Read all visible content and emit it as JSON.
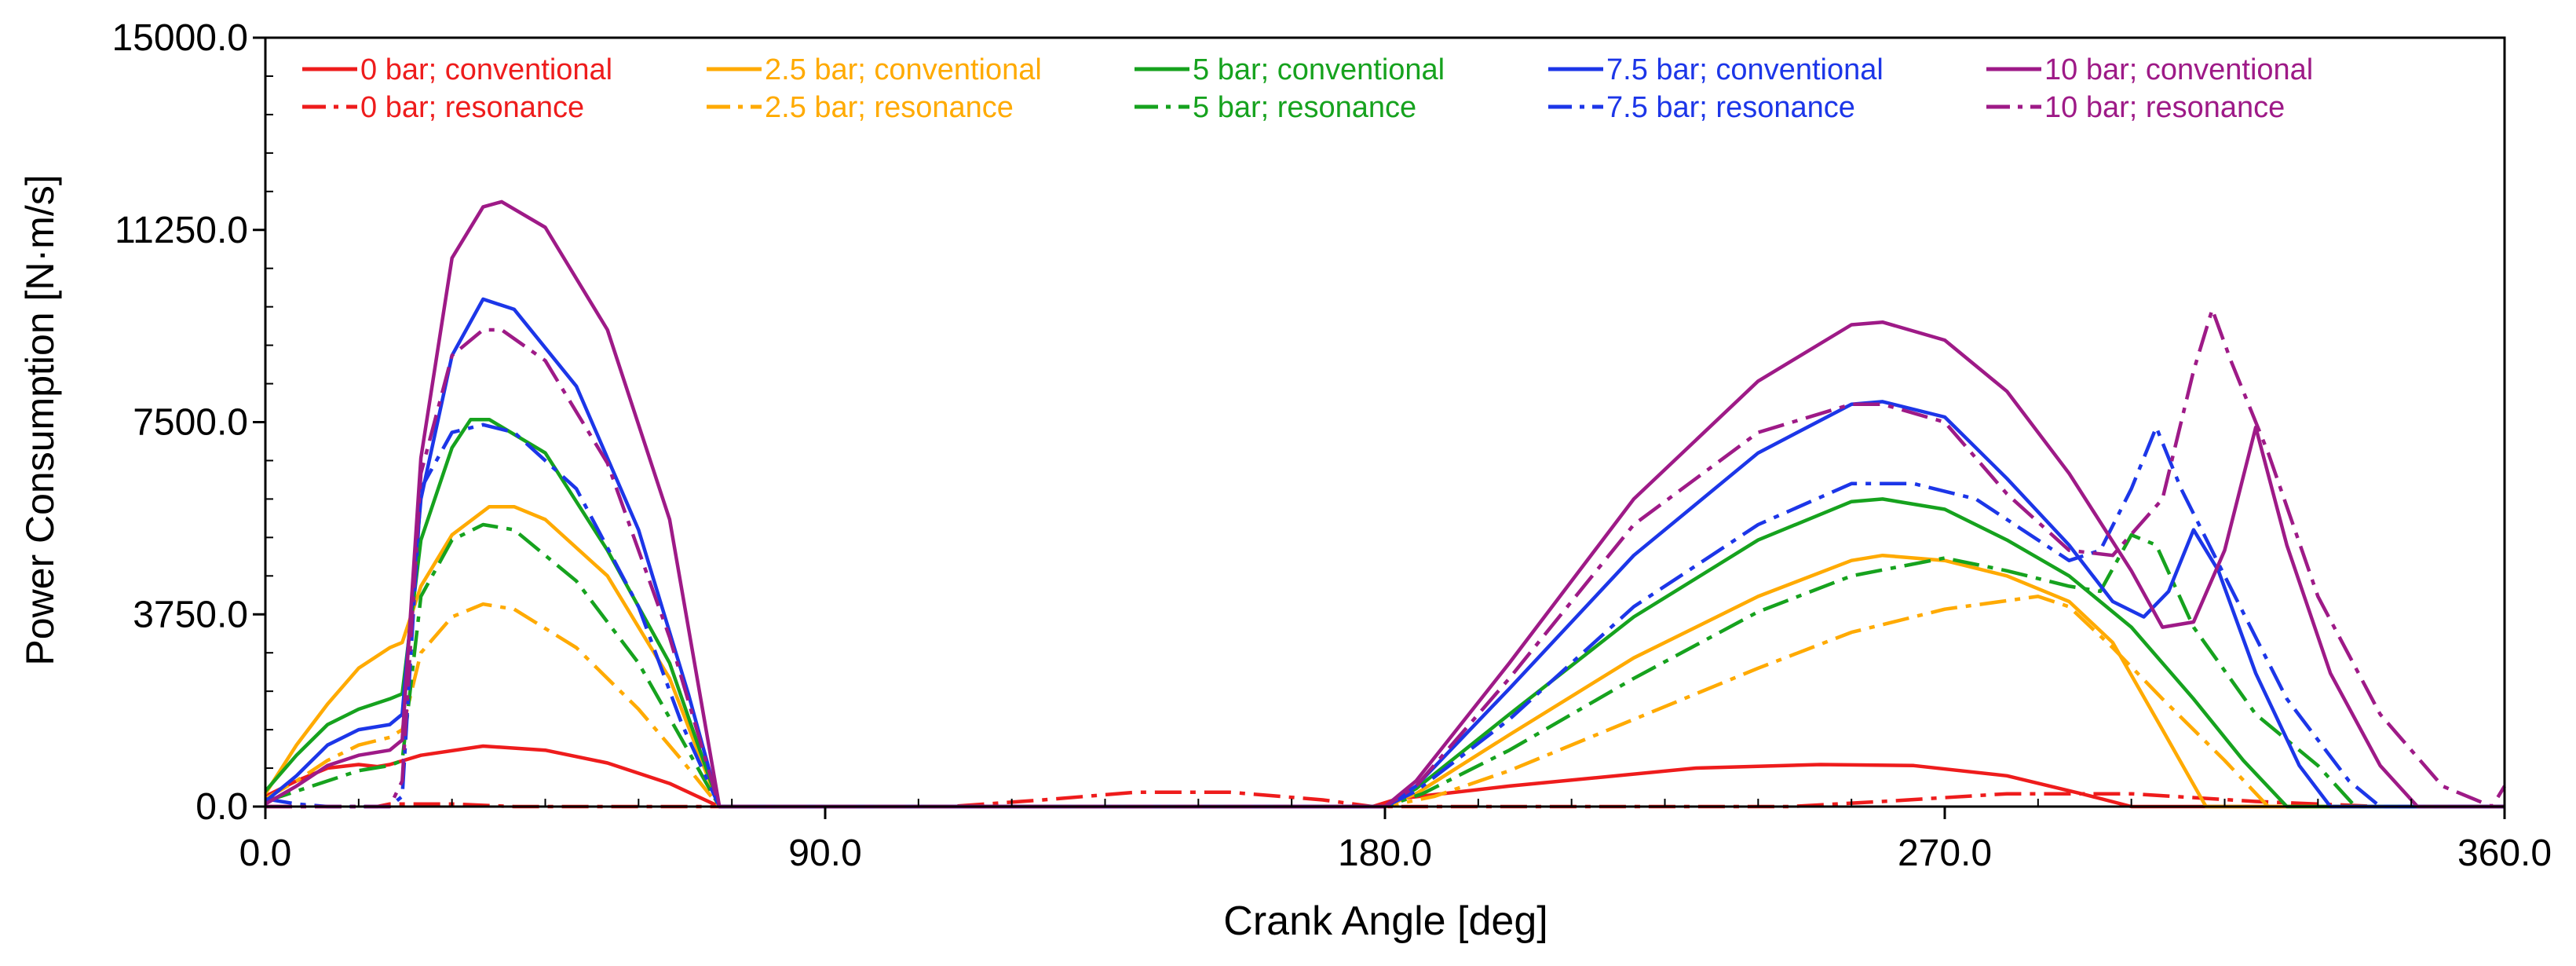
{
  "chart_data": {
    "type": "line",
    "title": "",
    "xlabel": "Crank Angle [deg]",
    "ylabel": "Power Consumption [N·m/s]",
    "xlim": [
      0,
      360
    ],
    "ylim": [
      0,
      15000
    ],
    "xticks": [
      0,
      90,
      180,
      270,
      360
    ],
    "yticks": [
      0,
      3750,
      7500,
      11250,
      15000
    ],
    "xtick_labels": [
      "0.0",
      "90.0",
      "180.0",
      "270.0",
      "360.0"
    ],
    "ytick_labels": [
      "0.0",
      "3750.0",
      "7500.0",
      "11250.0",
      "15000.0"
    ],
    "grid": false,
    "legend_position": "top",
    "series": [
      {
        "name": "0 bar; conventional",
        "color": "#ee1c1c",
        "style": "solid",
        "points": [
          [
            0,
            200
          ],
          [
            5,
            500
          ],
          [
            10,
            750
          ],
          [
            15,
            820
          ],
          [
            18,
            780
          ],
          [
            20,
            820
          ],
          [
            25,
            1000
          ],
          [
            35,
            1180
          ],
          [
            45,
            1100
          ],
          [
            55,
            850
          ],
          [
            65,
            450
          ],
          [
            73,
            0
          ],
          [
            178,
            0
          ],
          [
            182,
            150
          ],
          [
            200,
            400
          ],
          [
            230,
            750
          ],
          [
            250,
            820
          ],
          [
            265,
            800
          ],
          [
            280,
            600
          ],
          [
            292,
            250
          ],
          [
            300,
            0
          ],
          [
            360,
            0
          ]
        ]
      },
      {
        "name": "0 bar; resonance",
        "color": "#ee1c1c",
        "style": "dashdot",
        "points": [
          [
            0,
            0
          ],
          [
            18,
            0
          ],
          [
            20,
            50
          ],
          [
            30,
            50
          ],
          [
            40,
            0
          ],
          [
            110,
            0
          ],
          [
            125,
            130
          ],
          [
            140,
            280
          ],
          [
            155,
            280
          ],
          [
            170,
            130
          ],
          [
            178,
            0
          ],
          [
            245,
            0
          ],
          [
            260,
            100
          ],
          [
            280,
            250
          ],
          [
            300,
            250
          ],
          [
            320,
            100
          ],
          [
            340,
            0
          ],
          [
            360,
            0
          ]
        ]
      },
      {
        "name": "2.5 bar; conventional",
        "color": "#ffaa00",
        "style": "solid",
        "points": [
          [
            0,
            250
          ],
          [
            5,
            1200
          ],
          [
            10,
            2000
          ],
          [
            15,
            2700
          ],
          [
            20,
            3100
          ],
          [
            22,
            3200
          ],
          [
            25,
            4300
          ],
          [
            30,
            5300
          ],
          [
            36,
            5850
          ],
          [
            40,
            5850
          ],
          [
            45,
            5600
          ],
          [
            55,
            4500
          ],
          [
            65,
            2500
          ],
          [
            73,
            0
          ],
          [
            180,
            0
          ],
          [
            185,
            250
          ],
          [
            200,
            1400
          ],
          [
            220,
            2900
          ],
          [
            240,
            4100
          ],
          [
            255,
            4800
          ],
          [
            260,
            4900
          ],
          [
            270,
            4800
          ],
          [
            280,
            4500
          ],
          [
            290,
            4000
          ],
          [
            297,
            3200
          ],
          [
            305,
            1500
          ],
          [
            312,
            0
          ],
          [
            360,
            0
          ]
        ]
      },
      {
        "name": "2.5 bar; resonance",
        "color": "#ffaa00",
        "style": "dashdot",
        "points": [
          [
            0,
            150
          ],
          [
            5,
            500
          ],
          [
            10,
            900
          ],
          [
            15,
            1200
          ],
          [
            20,
            1350
          ],
          [
            22,
            1500
          ],
          [
            25,
            3000
          ],
          [
            30,
            3700
          ],
          [
            35,
            3950
          ],
          [
            40,
            3850
          ],
          [
            50,
            3100
          ],
          [
            60,
            1900
          ],
          [
            67,
            900
          ],
          [
            73,
            0
          ],
          [
            180,
            0
          ],
          [
            188,
            200
          ],
          [
            200,
            700
          ],
          [
            220,
            1700
          ],
          [
            240,
            2700
          ],
          [
            255,
            3400
          ],
          [
            270,
            3850
          ],
          [
            285,
            4100
          ],
          [
            290,
            3900
          ],
          [
            297,
            3100
          ],
          [
            305,
            2100
          ],
          [
            315,
            900
          ],
          [
            322,
            0
          ],
          [
            360,
            0
          ]
        ]
      },
      {
        "name": "5 bar; conventional",
        "color": "#16a21e",
        "style": "solid",
        "points": [
          [
            0,
            300
          ],
          [
            5,
            1000
          ],
          [
            10,
            1600
          ],
          [
            15,
            1900
          ],
          [
            20,
            2100
          ],
          [
            22,
            2200
          ],
          [
            25,
            5200
          ],
          [
            30,
            7000
          ],
          [
            33,
            7550
          ],
          [
            36,
            7550
          ],
          [
            45,
            6900
          ],
          [
            55,
            5000
          ],
          [
            65,
            2800
          ],
          [
            73,
            0
          ],
          [
            180,
            0
          ],
          [
            185,
            350
          ],
          [
            200,
            1800
          ],
          [
            220,
            3700
          ],
          [
            240,
            5200
          ],
          [
            255,
            5950
          ],
          [
            260,
            6000
          ],
          [
            270,
            5800
          ],
          [
            280,
            5200
          ],
          [
            290,
            4500
          ],
          [
            300,
            3500
          ],
          [
            310,
            2100
          ],
          [
            318,
            900
          ],
          [
            325,
            0
          ],
          [
            360,
            0
          ]
        ]
      },
      {
        "name": "5 bar; resonance",
        "color": "#16a21e",
        "style": "dashdot",
        "points": [
          [
            0,
            100
          ],
          [
            5,
            300
          ],
          [
            10,
            500
          ],
          [
            15,
            700
          ],
          [
            20,
            800
          ],
          [
            22,
            900
          ],
          [
            25,
            4100
          ],
          [
            30,
            5200
          ],
          [
            35,
            5500
          ],
          [
            40,
            5400
          ],
          [
            50,
            4400
          ],
          [
            60,
            2800
          ],
          [
            67,
            1300
          ],
          [
            73,
            0
          ],
          [
            180,
            0
          ],
          [
            186,
            250
          ],
          [
            200,
            1100
          ],
          [
            220,
            2500
          ],
          [
            240,
            3800
          ],
          [
            255,
            4500
          ],
          [
            270,
            4850
          ],
          [
            280,
            4600
          ],
          [
            290,
            4300
          ],
          [
            295,
            4200
          ],
          [
            300,
            5300
          ],
          [
            304,
            5100
          ],
          [
            310,
            3500
          ],
          [
            320,
            1800
          ],
          [
            330,
            800
          ],
          [
            336,
            0
          ],
          [
            360,
            0
          ]
        ]
      },
      {
        "name": "7.5 bar; conventional",
        "color": "#1c36e8",
        "style": "solid",
        "points": [
          [
            0,
            100
          ],
          [
            5,
            600
          ],
          [
            10,
            1200
          ],
          [
            15,
            1500
          ],
          [
            20,
            1600
          ],
          [
            22,
            1800
          ],
          [
            25,
            6000
          ],
          [
            30,
            8800
          ],
          [
            35,
            9900
          ],
          [
            40,
            9700
          ],
          [
            50,
            8200
          ],
          [
            60,
            5400
          ],
          [
            68,
            2200
          ],
          [
            73,
            0
          ],
          [
            180,
            0
          ],
          [
            185,
            400
          ],
          [
            200,
            2300
          ],
          [
            220,
            4900
          ],
          [
            240,
            6900
          ],
          [
            255,
            7850
          ],
          [
            260,
            7900
          ],
          [
            270,
            7600
          ],
          [
            280,
            6400
          ],
          [
            290,
            5100
          ],
          [
            297,
            4000
          ],
          [
            302,
            3700
          ],
          [
            306,
            4200
          ],
          [
            310,
            5400
          ],
          [
            314,
            4600
          ],
          [
            320,
            2600
          ],
          [
            327,
            800
          ],
          [
            332,
            0
          ],
          [
            360,
            0
          ]
        ]
      },
      {
        "name": "7.5 bar; resonance",
        "color": "#1c36e8",
        "style": "dashdot",
        "points": [
          [
            0,
            150
          ],
          [
            5,
            50
          ],
          [
            10,
            0
          ],
          [
            20,
            0
          ],
          [
            22,
            200
          ],
          [
            25,
            6200
          ],
          [
            30,
            7300
          ],
          [
            35,
            7450
          ],
          [
            40,
            7300
          ],
          [
            50,
            6200
          ],
          [
            60,
            3900
          ],
          [
            67,
            1600
          ],
          [
            73,
            0
          ],
          [
            180,
            0
          ],
          [
            185,
            300
          ],
          [
            200,
            1700
          ],
          [
            220,
            3900
          ],
          [
            240,
            5500
          ],
          [
            255,
            6300
          ],
          [
            265,
            6300
          ],
          [
            275,
            6000
          ],
          [
            285,
            5200
          ],
          [
            290,
            4800
          ],
          [
            295,
            5000
          ],
          [
            300,
            6200
          ],
          [
            304,
            7400
          ],
          [
            308,
            6200
          ],
          [
            315,
            4500
          ],
          [
            325,
            2100
          ],
          [
            335,
            500
          ],
          [
            340,
            0
          ],
          [
            360,
            0
          ]
        ]
      },
      {
        "name": "10 bar; conventional",
        "color": "#9e1a87",
        "style": "solid",
        "points": [
          [
            0,
            50
          ],
          [
            5,
            400
          ],
          [
            10,
            800
          ],
          [
            15,
            1000
          ],
          [
            20,
            1100
          ],
          [
            22,
            1300
          ],
          [
            25,
            6800
          ],
          [
            30,
            10700
          ],
          [
            35,
            11700
          ],
          [
            38,
            11800
          ],
          [
            45,
            11300
          ],
          [
            55,
            9300
          ],
          [
            65,
            5600
          ],
          [
            73,
            0
          ],
          [
            180,
            0
          ],
          [
            185,
            500
          ],
          [
            200,
            2800
          ],
          [
            220,
            6000
          ],
          [
            240,
            8300
          ],
          [
            255,
            9400
          ],
          [
            260,
            9450
          ],
          [
            270,
            9100
          ],
          [
            280,
            8100
          ],
          [
            290,
            6500
          ],
          [
            300,
            4600
          ],
          [
            305,
            3500
          ],
          [
            310,
            3600
          ],
          [
            315,
            5000
          ],
          [
            320,
            7400
          ],
          [
            325,
            5100
          ],
          [
            332,
            2600
          ],
          [
            340,
            800
          ],
          [
            346,
            0
          ],
          [
            360,
            0
          ]
        ]
      },
      {
        "name": "10 bar; resonance",
        "color": "#9e1a87",
        "style": "dashdot",
        "points": [
          [
            0,
            0
          ],
          [
            20,
            0
          ],
          [
            22,
            500
          ],
          [
            25,
            6500
          ],
          [
            30,
            8800
          ],
          [
            35,
            9300
          ],
          [
            38,
            9300
          ],
          [
            45,
            8700
          ],
          [
            55,
            6700
          ],
          [
            65,
            3300
          ],
          [
            73,
            0
          ],
          [
            180,
            0
          ],
          [
            185,
            400
          ],
          [
            200,
            2500
          ],
          [
            220,
            5500
          ],
          [
            240,
            7300
          ],
          [
            255,
            7850
          ],
          [
            260,
            7850
          ],
          [
            270,
            7500
          ],
          [
            280,
            6100
          ],
          [
            290,
            5000
          ],
          [
            297,
            4900
          ],
          [
            305,
            6000
          ],
          [
            310,
            8500
          ],
          [
            313,
            9700
          ],
          [
            316,
            8700
          ],
          [
            322,
            6900
          ],
          [
            330,
            4100
          ],
          [
            340,
            1800
          ],
          [
            350,
            400
          ],
          [
            358,
            0
          ],
          [
            360,
            400
          ]
        ]
      }
    ]
  }
}
